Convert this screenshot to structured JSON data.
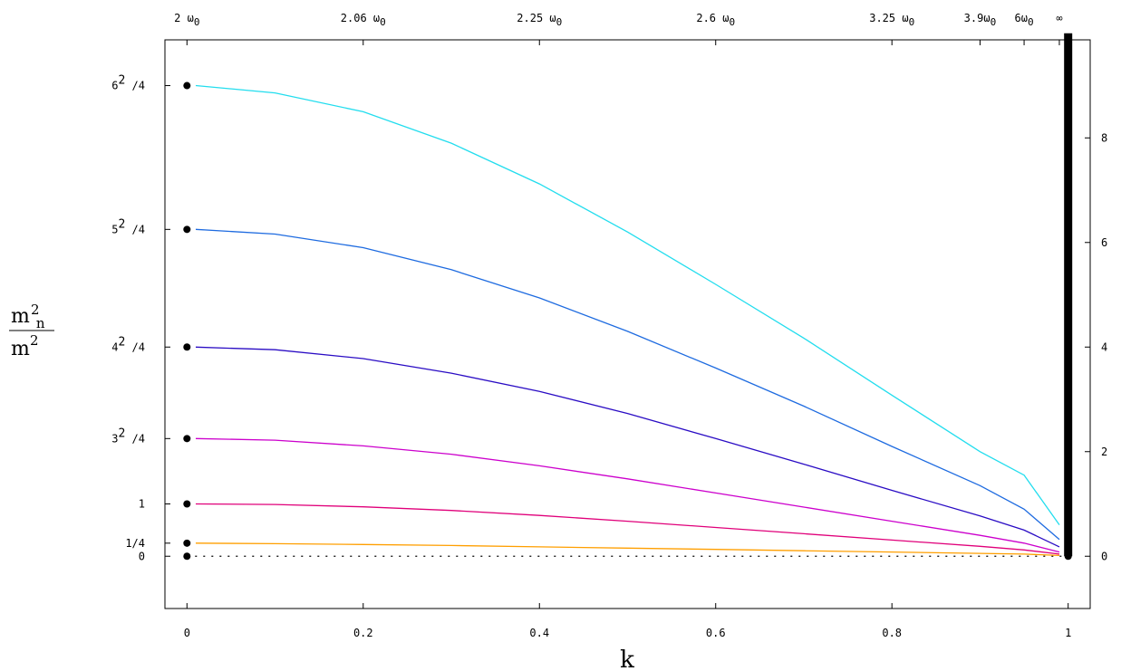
{
  "chart_data": {
    "type": "line",
    "xlabel": "k",
    "xlim": [
      -0.025,
      1.025
    ],
    "ylim": [
      -1.0,
      9.875
    ],
    "x_ticks": [
      {
        "value": 0,
        "label": "0"
      },
      {
        "value": 0.2,
        "label": "0.2"
      },
      {
        "value": 0.4,
        "label": "0.4"
      },
      {
        "value": 0.6,
        "label": "0.6"
      },
      {
        "value": 0.8,
        "label": "0.8"
      },
      {
        "value": 1,
        "label": "1"
      }
    ],
    "top_ticks": [
      {
        "x": 0,
        "base": "2 ω",
        "sub": "0"
      },
      {
        "x": 0.2,
        "base": "2.06 ω",
        "sub": "0"
      },
      {
        "x": 0.4,
        "base": "2.25 ω",
        "sub": "0"
      },
      {
        "x": 0.6,
        "base": "2.6 ω",
        "sub": "0"
      },
      {
        "x": 0.8,
        "base": "3.25 ω",
        "sub": "0"
      },
      {
        "x": 0.9,
        "base": "3.9ω",
        "sub": "0"
      },
      {
        "x": 0.95,
        "base": "6ω",
        "sub": "0"
      },
      {
        "x": 0.99,
        "base": "∞",
        "sub": ""
      }
    ],
    "left_ticks": [
      {
        "value": 0,
        "base": "0",
        "sup": "",
        "tail": ""
      },
      {
        "value": 0.25,
        "base": "1/4",
        "sup": "",
        "tail": ""
      },
      {
        "value": 1,
        "base": "1",
        "sup": "",
        "tail": ""
      },
      {
        "value": 2.25,
        "base": "3",
        "sup": "2",
        "tail": " /4"
      },
      {
        "value": 4,
        "base": "4",
        "sup": "2",
        "tail": " /4"
      },
      {
        "value": 6.25,
        "base": "5",
        "sup": "2",
        "tail": " /4"
      },
      {
        "value": 9,
        "base": "6",
        "sup": "2",
        "tail": " /4"
      }
    ],
    "right_ticks": [
      {
        "value": 0,
        "label": "0"
      },
      {
        "value": 2,
        "label": "2"
      },
      {
        "value": 4,
        "label": "4"
      },
      {
        "value": 6,
        "label": "6"
      },
      {
        "value": 8,
        "label": "8"
      }
    ],
    "ylabel": {
      "num_base": "m",
      "num_sub": "n",
      "num_sup": "2",
      "den_base": "m",
      "den_sup": "2"
    },
    "x": [
      0.01,
      0.1,
      0.2,
      0.3,
      0.4,
      0.5,
      0.6,
      0.7,
      0.8,
      0.9,
      0.95,
      0.99
    ],
    "series": [
      {
        "color": "#ff9f00",
        "values": [
          0.25,
          0.24,
          0.225,
          0.205,
          0.18,
          0.155,
          0.13,
          0.105,
          0.08,
          0.055,
          0.04,
          0.015
        ]
      },
      {
        "color": "#e0007a",
        "values": [
          1.0,
          0.99,
          0.945,
          0.875,
          0.78,
          0.67,
          0.55,
          0.43,
          0.31,
          0.19,
          0.12,
          0.04
        ]
      },
      {
        "color": "#cc00cc",
        "values": [
          2.25,
          2.22,
          2.11,
          1.95,
          1.73,
          1.48,
          1.21,
          0.94,
          0.67,
          0.4,
          0.25,
          0.08
        ]
      },
      {
        "color": "#2a0cc4",
        "values": [
          4.0,
          3.95,
          3.78,
          3.5,
          3.15,
          2.73,
          2.25,
          1.76,
          1.26,
          0.77,
          0.5,
          0.18
        ]
      },
      {
        "color": "#1e6be0",
        "values": [
          6.25,
          6.16,
          5.9,
          5.48,
          4.94,
          4.3,
          3.6,
          2.87,
          2.1,
          1.35,
          0.9,
          0.32
        ]
      },
      {
        "color": "#22ddee",
        "values": [
          9.0,
          8.86,
          8.5,
          7.9,
          7.12,
          6.2,
          5.2,
          4.17,
          3.08,
          2.0,
          1.55,
          0.6
        ]
      }
    ],
    "points": [
      {
        "x": 0,
        "y": 0
      },
      {
        "x": 0,
        "y": 0.25
      },
      {
        "x": 0,
        "y": 1
      },
      {
        "x": 0,
        "y": 2.25
      },
      {
        "x": 0,
        "y": 4
      },
      {
        "x": 0,
        "y": 6.25
      },
      {
        "x": 0,
        "y": 9
      },
      {
        "x": 1,
        "y": 0
      }
    ],
    "dotted_line": {
      "y": 0,
      "x_from": 0,
      "x_to": 1
    },
    "vertical_bar": {
      "x": 1,
      "y_from": 0,
      "y_to": 10
    }
  }
}
